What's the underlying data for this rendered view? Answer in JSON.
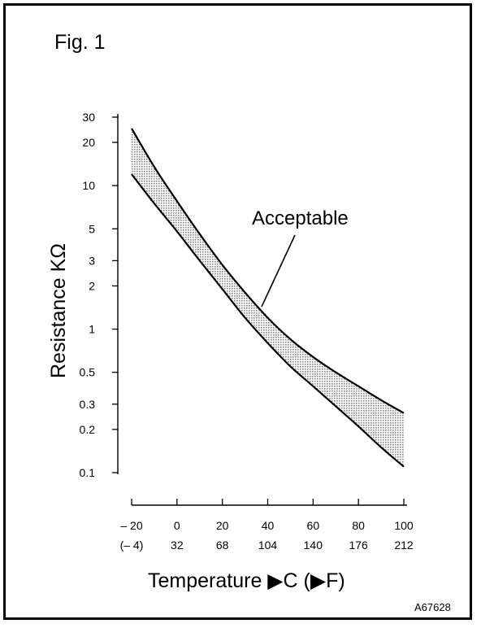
{
  "figure_label": "Fig. 1",
  "code": "A67628",
  "chart_data": {
    "type": "line",
    "title": "",
    "xlabel": "Temperature ▶C (▶F)",
    "ylabel": "Resistance KΩ",
    "y_scale": "log",
    "ylim": [
      0.1,
      30
    ],
    "xlim": [
      -20,
      100
    ],
    "y_ticks": [
      30,
      20,
      10,
      5,
      3,
      2,
      1,
      0.5,
      0.3,
      0.2,
      0.1
    ],
    "y_tick_labels": [
      "30",
      "20",
      "10",
      "5",
      "3",
      "2",
      "1",
      "0.5",
      "0.3",
      "0.2",
      "0.1"
    ],
    "x_ticks": [
      -20,
      0,
      20,
      40,
      60,
      80,
      100
    ],
    "x_tick_labels_c": [
      "– 20",
      "0",
      "20",
      "40",
      "60",
      "80",
      "100"
    ],
    "x_tick_labels_f": [
      "(– 4)",
      "32",
      "68",
      "104",
      "140",
      "176",
      "212"
    ],
    "upper_bound": {
      "x": [
        -20,
        -10,
        0,
        10,
        20,
        30,
        40,
        50,
        60,
        70,
        80,
        90,
        100
      ],
      "y": [
        25,
        13.5,
        7.8,
        4.6,
        2.8,
        1.8,
        1.2,
        0.85,
        0.64,
        0.5,
        0.4,
        0.32,
        0.26
      ]
    },
    "lower_bound": {
      "x": [
        -20,
        -10,
        0,
        10,
        20,
        30,
        40,
        50,
        60,
        70,
        80,
        90,
        100
      ],
      "y": [
        12,
        7.5,
        4.8,
        3.0,
        1.9,
        1.2,
        0.8,
        0.55,
        0.4,
        0.29,
        0.21,
        0.15,
        0.11
      ]
    },
    "annotation": "Acceptable",
    "fill_color": "#a8a8a8",
    "line_color": "#000000"
  }
}
